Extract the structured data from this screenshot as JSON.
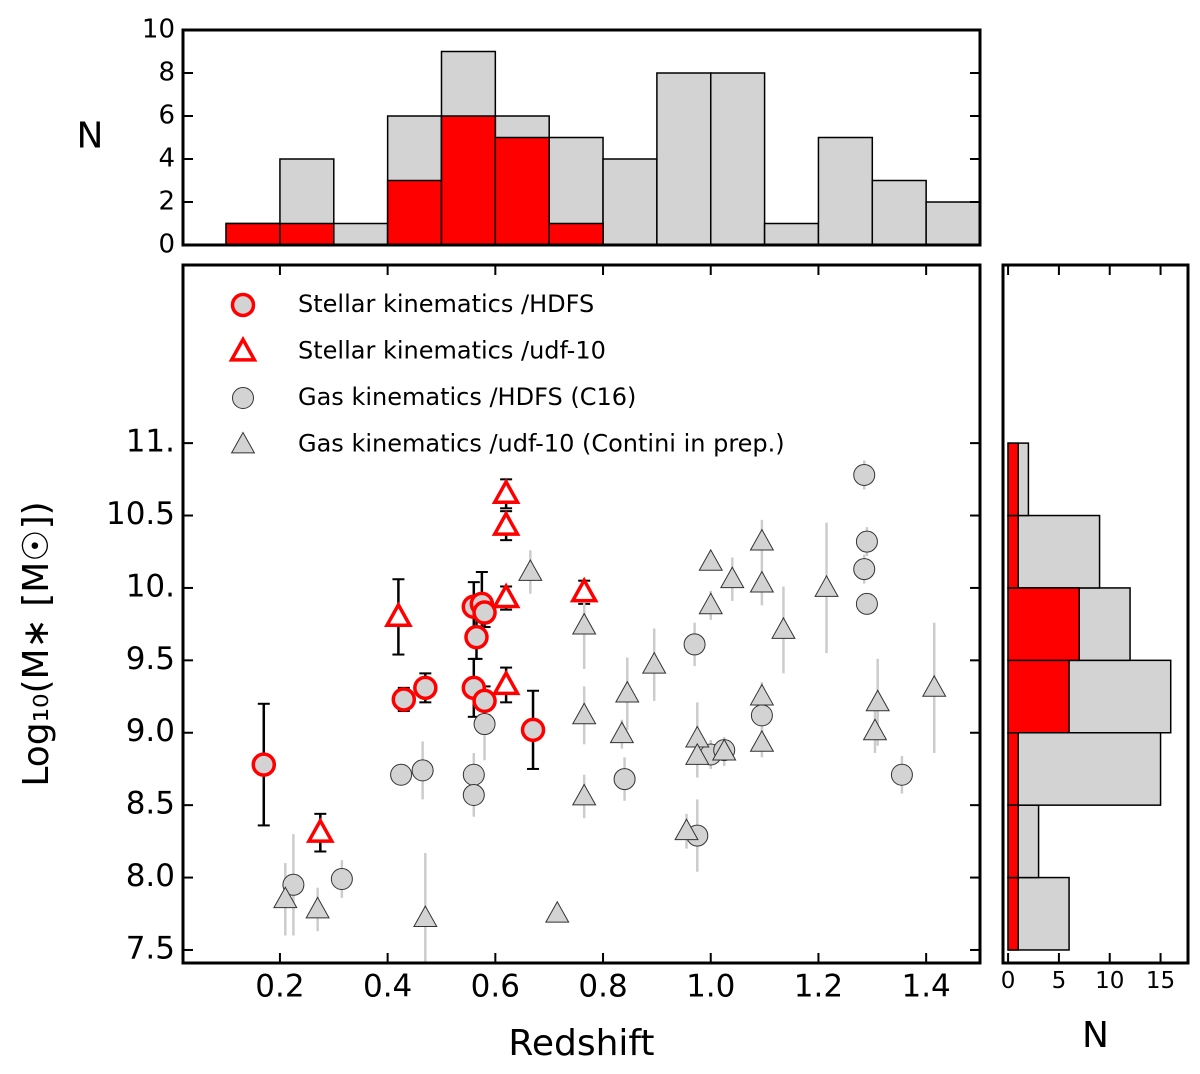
{
  "chart_data": [
    {
      "type": "histogram",
      "orientation": "vertical",
      "ylabel": "N",
      "bins": [
        0.1,
        0.2,
        0.3,
        0.4,
        0.5,
        0.6,
        0.7,
        0.8,
        0.9,
        1.0,
        1.1,
        1.2,
        1.3,
        1.4,
        1.5
      ],
      "xlim": [
        0.02,
        1.5
      ],
      "ylim": [
        0,
        10
      ],
      "yticks": [
        0,
        2,
        4,
        6,
        8,
        10
      ],
      "series": [
        {
          "color": "#d3d3d3",
          "values": [
            1,
            4,
            1,
            6,
            9,
            6,
            5,
            4,
            8,
            8,
            1,
            5,
            3,
            2
          ]
        },
        {
          "color": "#ff0000",
          "values": [
            1,
            1,
            0,
            3,
            6,
            5,
            1,
            0,
            0,
            0,
            0,
            0,
            0,
            0
          ]
        }
      ]
    },
    {
      "type": "scatter",
      "xlabel": "Redshift",
      "ylabel": "Log₁₀(M∗ [M☉])",
      "legend": "upper left",
      "xlim": [
        0.02,
        1.5
      ],
      "ylim": [
        7.41,
        12.23
      ],
      "xticks": [
        0.2,
        0.4,
        0.6,
        0.8,
        {
          "value": 1.0,
          "label": "1.0"
        },
        1.2,
        1.4
      ],
      "yticks": [
        7.5,
        {
          "value": 8,
          "label": "8.0"
        },
        8.5,
        {
          "value": 9,
          "label": "9.0"
        },
        9.5,
        {
          "value": 10,
          "label": "10."
        },
        10.5,
        {
          "value": 11,
          "label": "11."
        }
      ],
      "series": [
        {
          "name": "Stellar kinematics /HDFS",
          "marker": "circle",
          "color": "#ff0000",
          "facecolor": "#d3d3d3",
          "errcolor": "#000000",
          "x": [
            0.17,
            0.43,
            0.47,
            0.56,
            0.565,
            0.56,
            0.575,
            0.58,
            0.58,
            0.67
          ],
          "y": [
            8.78,
            9.23,
            9.31,
            9.87,
            9.66,
            9.31,
            9.89,
            9.83,
            9.22,
            9.02
          ],
          "yerr": [
            0.42,
            0.08,
            0.1,
            0.17,
            0.15,
            0.2,
            0.22,
            0.1,
            0.1,
            0.27
          ]
        },
        {
          "name": "Stellar kinematics /udf-10",
          "marker": "triangle",
          "color": "#ff0000",
          "facecolor": "#ffffff",
          "errcolor": "#000000",
          "x": [
            0.275,
            0.42,
            0.62,
            0.62,
            0.62,
            0.62,
            0.765
          ],
          "y": [
            8.31,
            9.8,
            10.65,
            10.43,
            9.93,
            9.33,
            9.97
          ],
          "yerr": [
            0.13,
            0.26,
            0.1,
            0.1,
            0.08,
            0.12,
            0.08
          ]
        },
        {
          "name": "Gas kinematics /HDFS (C16)",
          "marker": "circle",
          "color": "#333333",
          "facecolor": "#d3d3d3",
          "errcolor": "#cccccc",
          "x": [
            0.225,
            0.315,
            0.425,
            0.465,
            0.56,
            0.56,
            0.58,
            0.84,
            0.97,
            0.975,
            1.0,
            1.025,
            1.095,
            1.285,
            1.29,
            1.285,
            1.29,
            1.355
          ],
          "y": [
            7.95,
            7.99,
            8.71,
            8.74,
            8.71,
            8.57,
            9.06,
            8.68,
            9.61,
            8.29,
            8.85,
            8.88,
            9.12,
            10.78,
            10.32,
            10.13,
            9.89,
            8.71
          ],
          "yerr": [
            0.35,
            0.13,
            0.05,
            0.2,
            0.15,
            0.15,
            0.25,
            0.15,
            0.15,
            0.25,
            0.1,
            0.08,
            0.15,
            0.1,
            0.1,
            0.1,
            0.05,
            0.13
          ]
        },
        {
          "name": "Gas kinematics /udf-10 (Contini in prep.)",
          "marker": "triangle",
          "color": "#333333",
          "facecolor": "#d3d3d3",
          "errcolor": "#cccccc",
          "x": [
            0.21,
            0.27,
            0.47,
            0.665,
            0.715,
            0.765,
            0.765,
            0.765,
            0.835,
            0.845,
            0.895,
            0.955,
            0.975,
            0.975,
            1.0,
            1.0,
            1.025,
            1.04,
            1.095,
            1.095,
            1.095,
            1.095,
            1.135,
            1.215,
            1.31,
            1.305,
            1.415
          ],
          "y": [
            7.85,
            7.78,
            7.72,
            10.11,
            7.75,
            9.74,
            9.12,
            8.56,
            8.99,
            9.27,
            9.47,
            8.32,
            8.96,
            8.84,
            10.18,
            9.88,
            8.87,
            10.06,
            10.32,
            10.03,
            9.25,
            8.93,
            9.71,
            10.0,
            9.21,
            9.01,
            9.31
          ],
          "yerr": [
            0.25,
            0.15,
            0.45,
            0.15,
            0,
            0.3,
            0.2,
            0.15,
            0.1,
            0.25,
            0.25,
            0.12,
            0.25,
            0.15,
            0.05,
            0.1,
            0.1,
            0.15,
            0.15,
            0.15,
            0.1,
            0.1,
            0.3,
            0.45,
            0.3,
            0.15,
            0.45
          ]
        }
      ]
    },
    {
      "type": "histogram",
      "orientation": "horizontal",
      "xlabel": "N",
      "bins": [
        7.5,
        8.0,
        8.5,
        9.0,
        9.5,
        10.0,
        10.5,
        11.0
      ],
      "xlim": [
        -0.5,
        17.7
      ],
      "ylim": [
        7.41,
        12.23
      ],
      "xticks": [
        0,
        5,
        10,
        15
      ],
      "series": [
        {
          "color": "#d3d3d3",
          "values": [
            6,
            3,
            15,
            16,
            12,
            9,
            2
          ]
        },
        {
          "color": "#ff0000",
          "values": [
            1,
            1,
            1,
            6,
            7,
            1,
            1
          ]
        }
      ]
    }
  ]
}
